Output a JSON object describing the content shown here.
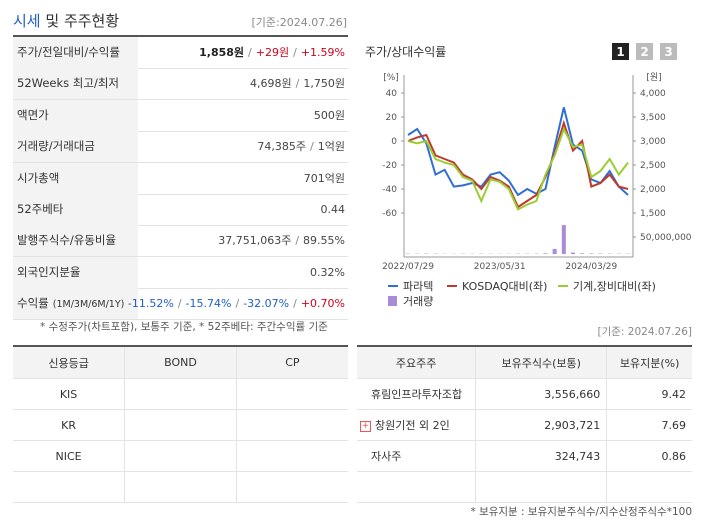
{
  "header": {
    "title_main": "시세",
    "title_rest": "및 주주현황",
    "date": "[기준:2024.07.26]"
  },
  "summary_table": {
    "rows": [
      {
        "label": "주가/전일대비/수익률",
        "value": [
          {
            "text": "1,858원",
            "color": "#222",
            "bold": true
          },
          {
            "text": "/",
            "color": "#888"
          },
          {
            "text": "+29원",
            "color": "#d0021b"
          },
          {
            "text": "/",
            "color": "#888"
          },
          {
            "text": "+1.59%",
            "color": "#d0021b"
          }
        ]
      },
      {
        "label": "52Weeks 최고/최저",
        "value": [
          {
            "text": "4,698원",
            "color": "#444"
          },
          {
            "text": "/",
            "color": "#888"
          },
          {
            "text": "1,750원",
            "color": "#444"
          }
        ]
      },
      {
        "label": "액면가",
        "value": [
          {
            "text": "500원",
            "color": "#444"
          }
        ]
      },
      {
        "label": "거래량/거래대금",
        "value": [
          {
            "text": "74,385주",
            "color": "#444"
          },
          {
            "text": "/",
            "color": "#888"
          },
          {
            "text": "1억원",
            "color": "#444"
          }
        ]
      },
      {
        "label": "시가총액",
        "value": [
          {
            "text": "701억원",
            "color": "#444"
          }
        ]
      },
      {
        "label": "52주베타",
        "value": [
          {
            "text": "0.44",
            "color": "#444"
          }
        ]
      },
      {
        "label": "발행주식수/유동비율",
        "value": [
          {
            "text": "37,751,063주",
            "color": "#444"
          },
          {
            "text": "/",
            "color": "#888"
          },
          {
            "text": "89.55%",
            "color": "#444"
          }
        ]
      },
      {
        "label": "외국인지분율",
        "value": [
          {
            "text": "0.32%",
            "color": "#444"
          }
        ]
      },
      {
        "label": "수익률",
        "label_note": "(1M/3M/6M/1Y)",
        "value": [
          {
            "text": "-11.52%",
            "color": "#1f5fc9"
          },
          {
            "text": "/",
            "color": "#888"
          },
          {
            "text": "-15.74%",
            "color": "#1f5fc9"
          },
          {
            "text": "/",
            "color": "#888"
          },
          {
            "text": "-32.07%",
            "color": "#1f5fc9"
          },
          {
            "text": "/",
            "color": "#888"
          },
          {
            "text": "+0.70%",
            "color": "#d0021b"
          }
        ]
      }
    ]
  },
  "note": "* 수정주가(차트포함), 보통주 기준, * 52주베타: 주간수익률 기준",
  "note_date": "[기준: 2024.07.26]",
  "chart_data": {
    "type": "line",
    "title": "주가/상대수익률",
    "buttons": [
      "1",
      "2",
      "3"
    ],
    "y_unit": "[%]",
    "y2_unit": "[원]",
    "categories": [
      "2022/07/29",
      null,
      null,
      null,
      null,
      null,
      null,
      null,
      null,
      null,
      "2023/05/31",
      null,
      null,
      null,
      null,
      null,
      null,
      null,
      null,
      null,
      "2024/03/29",
      null,
      null,
      null,
      null
    ],
    "ylim": [
      -60,
      40
    ],
    "yticks": [
      40,
      20,
      0,
      -20,
      -40,
      -60
    ],
    "y2lim": [
      1500,
      4000
    ],
    "y2ticks": [
      {
        "value": 4000,
        "label": "4,000"
      },
      {
        "value": 3500,
        "label": "3,500"
      },
      {
        "value": 3000,
        "label": "3,000"
      },
      {
        "value": 2500,
        "label": "2,500"
      },
      {
        "value": 2000,
        "label": "2,000"
      },
      {
        "value": 1500,
        "label": "1,500"
      }
    ],
    "volume_lim": [
      0,
      50000000
    ],
    "volume_ticks": [
      {
        "value": 50000000,
        "label": "50,000,000"
      }
    ],
    "grid": false,
    "series": [
      {
        "name": "파라텍",
        "color": "#2e6fd6",
        "axis": "y2",
        "values": [
          3125,
          3250,
          2950,
          2300,
          2400,
          2050,
          2075,
          2125,
          2050,
          2300,
          2350,
          2175,
          1875,
          2000,
          1900,
          2000,
          2875,
          3700,
          2925,
          2800,
          2200,
          2125,
          2375,
          2050,
          1875
        ]
      },
      {
        "name": "KOSDAQ대비(좌)",
        "color": "#c0392b",
        "values": [
          0,
          3,
          5,
          -12,
          -15,
          -18,
          -28,
          -32,
          -40,
          -30,
          -33,
          -38,
          -55,
          -50,
          -45,
          -30,
          -10,
          15,
          -8,
          0,
          -38,
          -35,
          -28,
          -38,
          -40
        ]
      },
      {
        "name": "기계,장비대비(좌)",
        "color": "#9acd32",
        "values": [
          0,
          -2,
          0,
          -15,
          -18,
          -20,
          -30,
          -33,
          -50,
          -32,
          -34,
          -40,
          -57,
          -53,
          -50,
          -28,
          -12,
          10,
          -5,
          -3,
          -30,
          -25,
          -15,
          -28,
          -18
        ]
      },
      {
        "name": "거래량",
        "color": "#a98bd8",
        "type": "bar",
        "axis": "volume",
        "values": [
          1000000,
          800000,
          1200000,
          900000,
          700000,
          600000,
          800000,
          700000,
          900000,
          800000,
          600000,
          700000,
          900000,
          800000,
          1000000,
          2000000,
          15000000,
          85000000,
          4000000,
          2000000,
          1500000,
          1200000,
          1000000,
          900000,
          800000
        ]
      }
    ]
  },
  "credit_table": {
    "header": [
      "신용등급",
      "BOND",
      "CP"
    ],
    "agencies": [
      "KIS",
      "KR",
      "NICE"
    ]
  },
  "shareholder_table": {
    "header": [
      "주요주주",
      "보유주식수(보통)",
      "보유지분(%)"
    ],
    "rows": [
      [
        "휴림인프라투자조합",
        "3,556,660",
        "9.42"
      ],
      [
        "창원기전 외 2인",
        "2,903,721",
        "7.69"
      ],
      [
        "자사주",
        "324,743",
        "0.86"
      ]
    ]
  },
  "footnote": "* 보유지분 : 보유지분주식수/지수산정주식수*100"
}
